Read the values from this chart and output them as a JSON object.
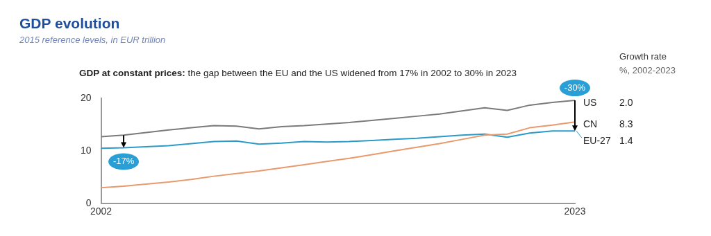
{
  "chart_data": {
    "type": "line",
    "title": "GDP evolution",
    "subtitle": "2015 reference levels, in EUR trillion",
    "x": [
      2002,
      2003,
      2004,
      2005,
      2006,
      2007,
      2008,
      2009,
      2010,
      2011,
      2012,
      2013,
      2014,
      2015,
      2016,
      2017,
      2018,
      2019,
      2020,
      2021,
      2022,
      2023
    ],
    "series": [
      {
        "name": "US",
        "color": "#7a7a7a",
        "values": [
          12.7,
          13.0,
          13.5,
          14.0,
          14.4,
          14.8,
          14.7,
          14.2,
          14.6,
          14.8,
          15.1,
          15.4,
          15.8,
          16.2,
          16.6,
          17.0,
          17.6,
          18.2,
          17.7,
          18.7,
          19.2,
          19.6
        ]
      },
      {
        "name": "CN",
        "color": "#e89a6c",
        "values": [
          3.0,
          3.3,
          3.7,
          4.1,
          4.6,
          5.2,
          5.7,
          6.2,
          6.8,
          7.4,
          8.0,
          8.6,
          9.3,
          10.0,
          10.7,
          11.4,
          12.2,
          13.0,
          13.2,
          14.4,
          14.9,
          15.5
        ]
      },
      {
        "name": "EU-27",
        "color": "#2b9ac8",
        "values": [
          10.5,
          10.6,
          10.8,
          11.0,
          11.4,
          11.8,
          11.9,
          11.3,
          11.5,
          11.8,
          11.7,
          11.8,
          12.0,
          12.2,
          12.4,
          12.7,
          13.0,
          13.2,
          12.6,
          13.4,
          13.8,
          13.8
        ]
      }
    ],
    "xlim": [
      2002,
      2023
    ],
    "xticks": [
      2002,
      2023
    ],
    "ylim": [
      0,
      20
    ],
    "yticks": [
      0,
      10,
      20
    ],
    "grid": false,
    "legend": "right",
    "marker": "none",
    "line_style": "solid",
    "annotations": [
      "GDP at constant prices: the gap between the EU and the US widened from 17% in 2002 to 30% in 2023",
      "Growth rate",
      "%, 2002-2023",
      "2.0",
      "8.3",
      "1.4",
      {
        "text": "-17%",
        "x": 2003,
        "y": 10.6
      },
      {
        "text": "-30%",
        "x": 2023,
        "y": 13.8
      }
    ]
  }
}
